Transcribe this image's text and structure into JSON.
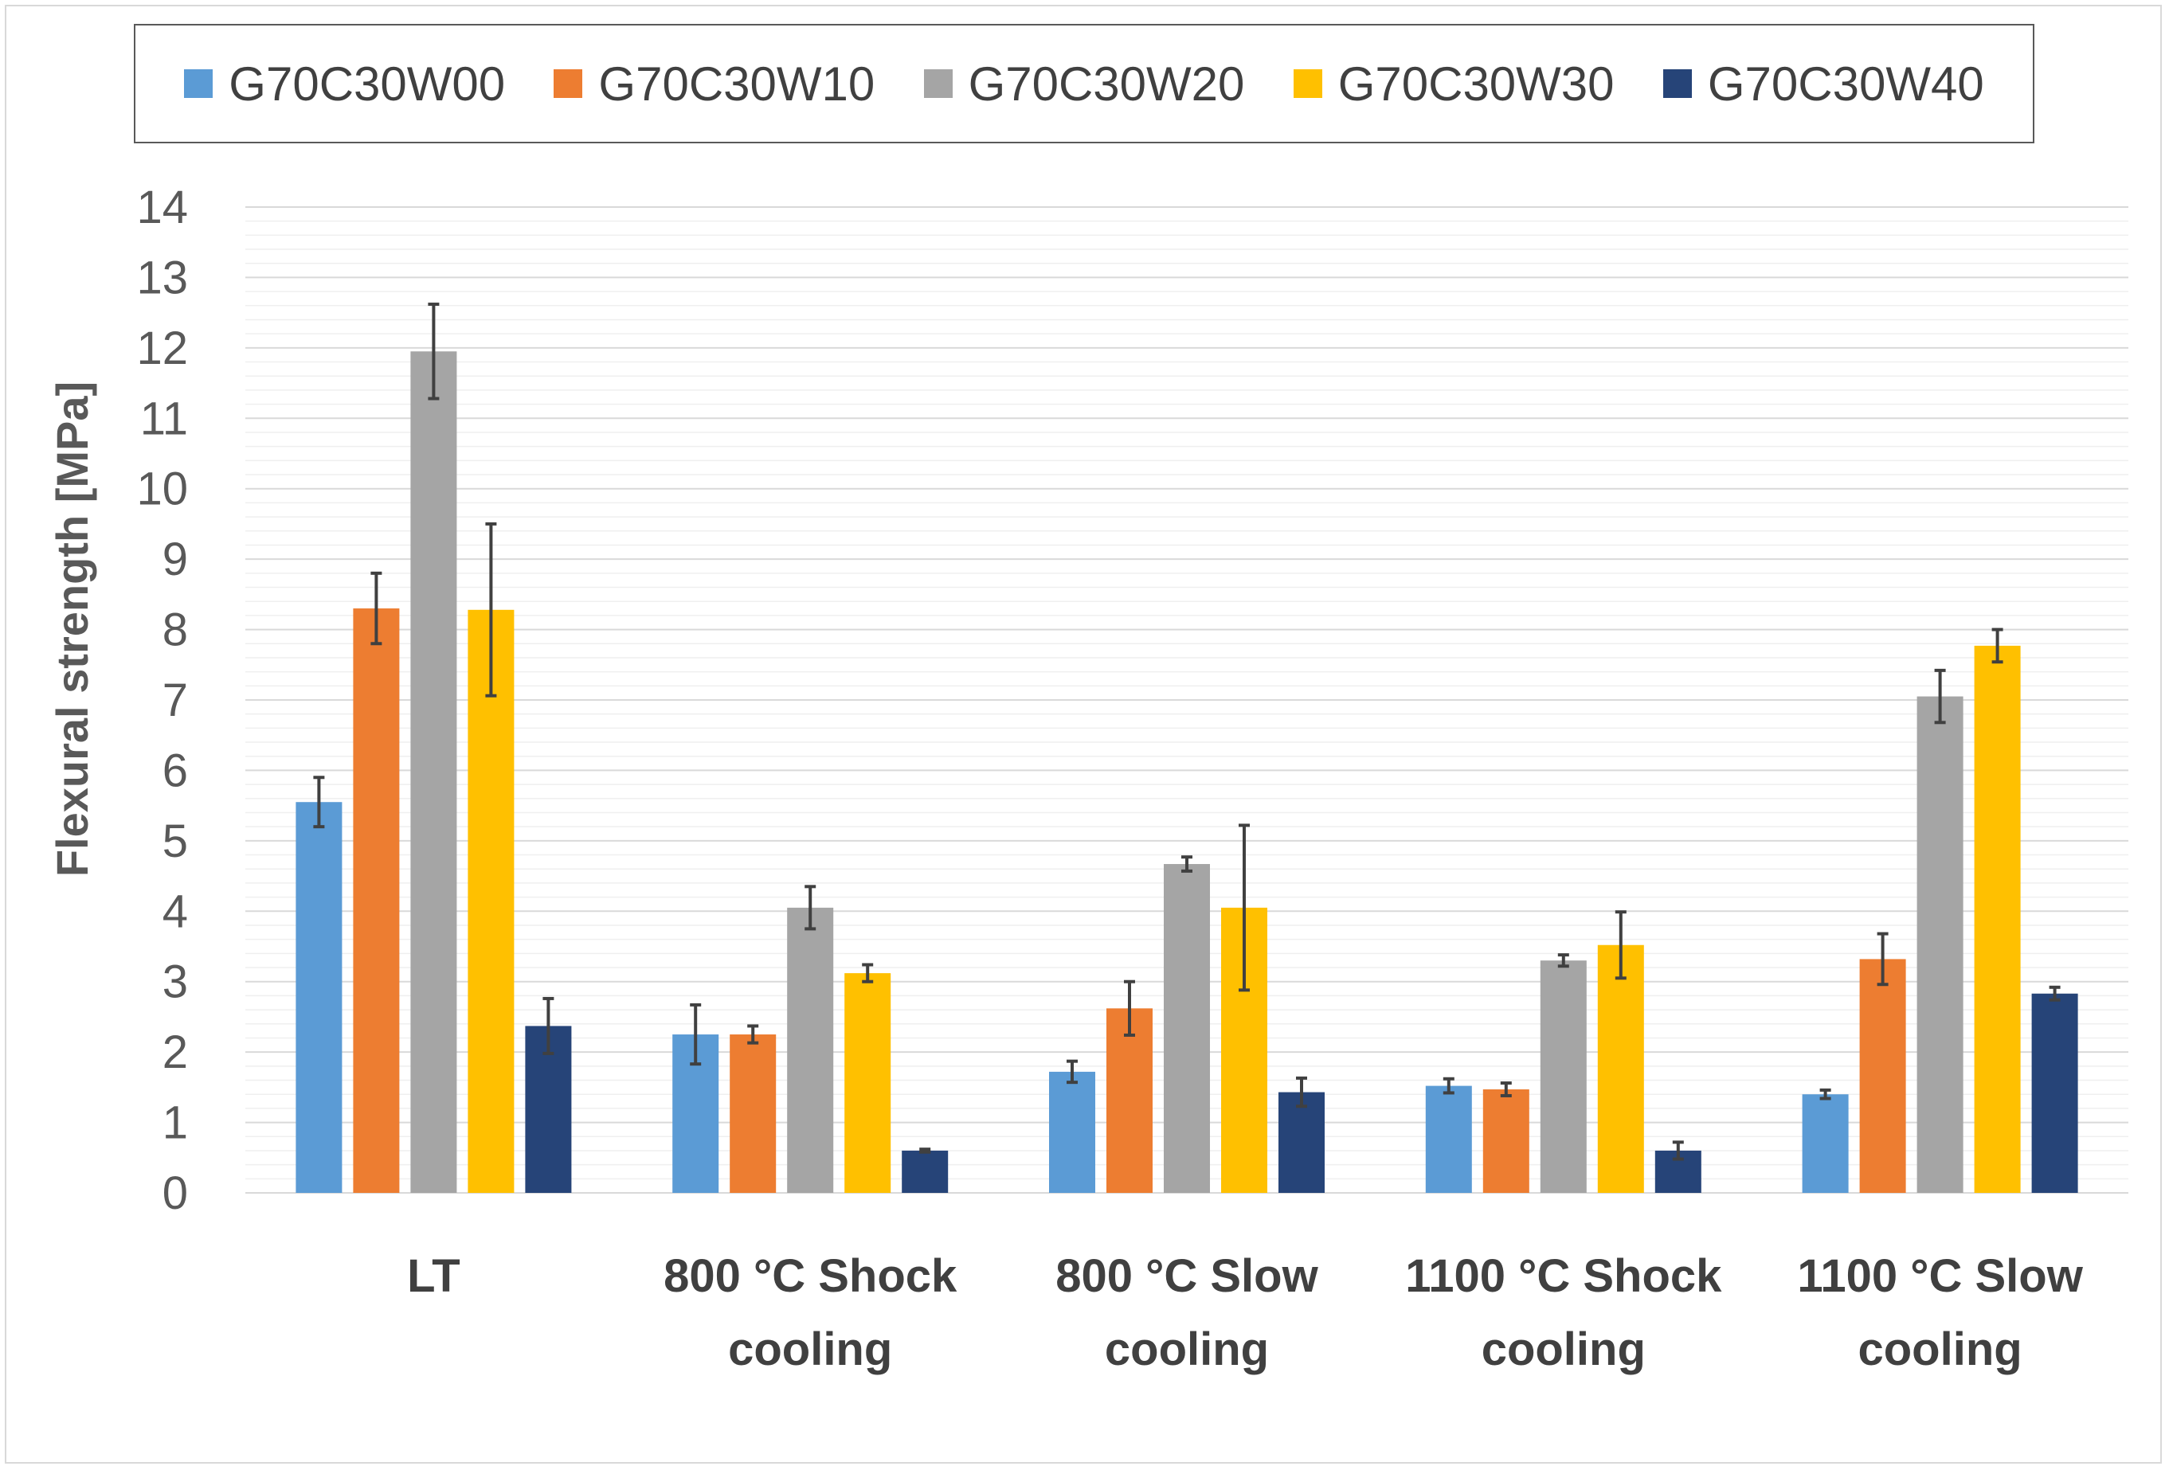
{
  "chart_data": {
    "type": "bar",
    "title": "",
    "xlabel": "",
    "ylabel": "Flexural strength [MPa]",
    "ylim": [
      0,
      14
    ],
    "ytick_step": 1,
    "minor_grid_step": 0.2,
    "grid": true,
    "legend_position": "top",
    "categories": [
      [
        "LT"
      ],
      [
        "800 °C Shock",
        "cooling"
      ],
      [
        "800 °C Slow",
        "cooling"
      ],
      [
        "1100 °C Shock",
        "cooling"
      ],
      [
        "1100 °C Slow",
        "cooling"
      ]
    ],
    "series": [
      {
        "name": "G70C30W00",
        "color": "#5B9BD5",
        "values": [
          5.55,
          2.25,
          1.72,
          1.52,
          1.4
        ],
        "errors": [
          0.35,
          0.42,
          0.15,
          0.1,
          0.06
        ]
      },
      {
        "name": "G70C30W10",
        "color": "#ED7D31",
        "values": [
          8.3,
          2.25,
          2.62,
          1.47,
          3.32
        ],
        "errors": [
          0.5,
          0.12,
          0.38,
          0.09,
          0.36
        ]
      },
      {
        "name": "G70C30W20",
        "color": "#A5A5A5",
        "values": [
          11.95,
          4.05,
          4.67,
          3.3,
          7.05
        ],
        "errors": [
          0.67,
          0.3,
          0.1,
          0.08,
          0.37
        ]
      },
      {
        "name": "G70C30W30",
        "color": "#FFC000",
        "values": [
          8.28,
          3.12,
          4.05,
          3.52,
          7.77
        ],
        "errors": [
          1.22,
          0.12,
          1.17,
          0.47,
          0.23
        ]
      },
      {
        "name": "G70C30W40",
        "color": "#264478",
        "values": [
          2.37,
          0.6,
          1.43,
          0.6,
          2.83
        ],
        "errors": [
          0.39,
          0.02,
          0.2,
          0.12,
          0.09
        ]
      }
    ]
  }
}
